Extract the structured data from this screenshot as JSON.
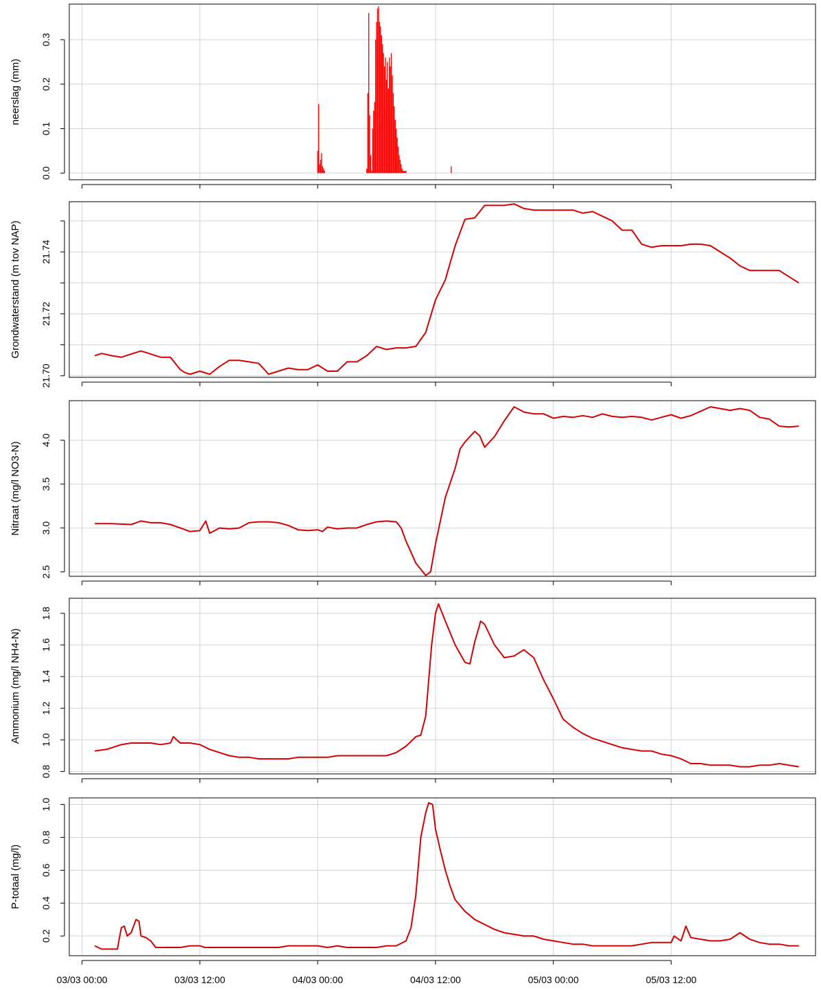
{
  "chart_data": {
    "type": "multi-panel time series",
    "x_tick_labels": [
      "03/03 00:00",
      "03/03 12:00",
      "04/03 00:00",
      "04/03 12:00",
      "05/03 00:00",
      "05/03 12:00"
    ],
    "x_ticks_hours": [
      0,
      12,
      24,
      36,
      48,
      60
    ],
    "x_range_hours": [
      -1.3,
      74.7
    ],
    "grid": true,
    "line_color": "#d40000",
    "bar_color": "#ff0000",
    "panels": [
      {
        "ylabel": "neerslag (mm)",
        "type": "bar",
        "ylim": [
          -0.015,
          0.38
        ],
        "yticks": [
          0.0,
          0.1,
          0.2,
          0.3
        ],
        "ytick_labels": [
          "0.0",
          "0.1",
          "0.2",
          "0.3"
        ],
        "x": [
          24.0,
          24.1,
          24.2,
          24.3,
          24.4,
          24.5,
          24.6,
          24.7,
          29.0,
          29.1,
          29.2,
          29.3,
          29.4,
          29.5,
          29.6,
          29.7,
          29.8,
          29.9,
          30.0,
          30.1,
          30.2,
          30.3,
          30.4,
          30.5,
          30.6,
          30.7,
          30.8,
          30.9,
          31.0,
          31.1,
          31.2,
          31.3,
          31.4,
          31.5,
          31.6,
          31.7,
          31.8,
          31.9,
          32.0,
          32.1,
          32.2,
          32.3,
          32.4,
          32.5,
          32.6,
          32.7,
          32.8,
          32.9,
          33.0,
          37.6
        ],
        "values": [
          0.05,
          0.155,
          0.02,
          0.03,
          0.045,
          0.015,
          0.01,
          0.005,
          0.01,
          0.18,
          0.36,
          0.13,
          0.04,
          0.005,
          0.1,
          0.14,
          0.16,
          0.3,
          0.34,
          0.37,
          0.375,
          0.34,
          0.33,
          0.31,
          0.29,
          0.27,
          0.24,
          0.26,
          0.21,
          0.25,
          0.19,
          0.26,
          0.24,
          0.27,
          0.22,
          0.18,
          0.15,
          0.12,
          0.1,
          0.08,
          0.06,
          0.04,
          0.03,
          0.02,
          0.01,
          0.005,
          0.005,
          0.005,
          0.005,
          0.015
        ]
      },
      {
        "ylabel": "Grondwaterstand (m tov NAP)",
        "type": "line",
        "ylim": [
          21.6995,
          21.7562
        ],
        "yticks": [
          21.7,
          21.71,
          21.72,
          21.73,
          21.74,
          21.75
        ],
        "ytick_labels": [
          "21.70",
          "",
          "21.72",
          "",
          "21.74",
          ""
        ],
        "x": [
          1.3,
          2,
          3,
          4,
          5,
          6,
          7,
          8,
          9,
          10,
          10.5,
          11,
          12,
          13,
          14,
          15,
          16,
          17,
          18,
          19,
          20,
          21,
          22,
          23,
          24,
          25,
          26,
          27,
          28,
          29,
          30,
          31,
          32,
          33,
          34,
          35,
          36,
          37,
          38,
          39,
          40,
          41,
          42,
          43,
          44,
          45,
          46,
          47,
          48,
          49,
          50,
          51,
          52,
          53,
          54,
          55,
          56,
          57,
          58,
          59,
          60,
          61,
          62,
          63,
          64,
          65,
          66,
          67,
          68,
          69,
          70,
          71,
          72,
          73
        ],
        "values": [
          21.7065,
          21.7072,
          21.7065,
          21.706,
          21.707,
          21.708,
          21.707,
          21.706,
          21.706,
          21.702,
          21.701,
          21.7005,
          21.7015,
          21.7005,
          21.703,
          21.705,
          21.705,
          21.7045,
          21.704,
          21.7005,
          21.7015,
          21.7025,
          21.702,
          21.702,
          21.7035,
          21.7015,
          21.7015,
          21.7045,
          21.7045,
          21.7065,
          21.7095,
          21.7085,
          21.709,
          21.709,
          21.7095,
          21.714,
          21.7245,
          21.731,
          21.742,
          21.7505,
          21.751,
          21.755,
          21.755,
          21.755,
          21.7555,
          21.754,
          21.7535,
          21.7535,
          21.7535,
          21.7535,
          21.7535,
          21.7525,
          21.753,
          21.7515,
          21.75,
          21.747,
          21.747,
          21.7425,
          21.7415,
          21.742,
          21.742,
          21.742,
          21.7425,
          21.7425,
          21.742,
          21.74,
          21.738,
          21.7355,
          21.734,
          21.734,
          21.734,
          21.734,
          21.732,
          21.73
        ]
      },
      {
        "ylabel": "Nitraat (mg/l NO3-N)",
        "type": "line",
        "ylim": [
          2.45,
          4.45
        ],
        "yticks": [
          2.5,
          3.0,
          3.5,
          4.0
        ],
        "ytick_labels": [
          "2.5",
          "3.0",
          "3.5",
          "4.0"
        ],
        "x": [
          1.3,
          3,
          5,
          6,
          7,
          8,
          9,
          10,
          11,
          12,
          12.6,
          13,
          14,
          15,
          16,
          17,
          18,
          19,
          20,
          21,
          22,
          23,
          24,
          24.5,
          25,
          26,
          27,
          28,
          29,
          30,
          31,
          32,
          32.5,
          33,
          34,
          35,
          35.5,
          36,
          37,
          38,
          38.5,
          39,
          40,
          40.5,
          41,
          42,
          43,
          44,
          45,
          46,
          47,
          48,
          49,
          50,
          51,
          52,
          53,
          54,
          55,
          56,
          57,
          58,
          59,
          60,
          61,
          62,
          63,
          64,
          65,
          66,
          67,
          68,
          69,
          70,
          71,
          72,
          73
        ],
        "values": [
          3.05,
          3.05,
          3.04,
          3.08,
          3.06,
          3.06,
          3.04,
          3.0,
          2.96,
          2.97,
          3.08,
          2.94,
          3.0,
          2.99,
          3.0,
          3.06,
          3.07,
          3.07,
          3.06,
          3.03,
          2.98,
          2.97,
          2.98,
          2.96,
          3.01,
          2.99,
          3.0,
          3.0,
          3.04,
          3.07,
          3.08,
          3.07,
          3.0,
          2.85,
          2.6,
          2.46,
          2.5,
          2.82,
          3.35,
          3.68,
          3.9,
          3.98,
          4.1,
          4.05,
          3.92,
          4.04,
          4.22,
          4.38,
          4.32,
          4.3,
          4.3,
          4.25,
          4.27,
          4.26,
          4.28,
          4.26,
          4.3,
          4.27,
          4.26,
          4.27,
          4.26,
          4.23,
          4.26,
          4.29,
          4.25,
          4.28,
          4.33,
          4.38,
          4.36,
          4.34,
          4.36,
          4.34,
          4.26,
          4.24,
          4.16,
          4.15,
          4.16
        ]
      },
      {
        "ylabel": "Ammonium (mg/l NH4-N)",
        "type": "line",
        "ylim": [
          0.785,
          1.895
        ],
        "yticks": [
          0.8,
          1.0,
          1.2,
          1.4,
          1.6,
          1.8
        ],
        "ytick_labels": [
          "0.8",
          "1.0",
          "1.2",
          "1.4",
          "1.6",
          "1.8"
        ],
        "x": [
          1.3,
          2.5,
          4,
          5,
          6,
          7,
          8,
          9,
          9.3,
          10,
          11,
          12,
          13,
          14,
          15,
          16,
          17,
          18,
          19,
          20,
          21,
          22,
          23,
          24,
          25,
          26,
          27,
          28,
          29,
          30,
          31,
          32,
          33,
          34,
          34.5,
          35,
          35.6,
          36,
          36.3,
          37,
          38,
          39,
          39.5,
          40,
          40.6,
          41,
          42,
          43,
          44,
          45,
          46,
          47,
          48,
          49,
          50,
          51,
          52,
          53,
          54,
          55,
          56,
          57,
          58,
          59,
          60,
          61,
          62,
          63,
          64,
          65,
          66,
          67,
          68,
          69,
          70,
          71,
          72,
          73
        ],
        "values": [
          0.93,
          0.94,
          0.97,
          0.98,
          0.98,
          0.98,
          0.97,
          0.98,
          1.02,
          0.98,
          0.98,
          0.97,
          0.94,
          0.92,
          0.9,
          0.89,
          0.89,
          0.88,
          0.88,
          0.88,
          0.88,
          0.89,
          0.89,
          0.89,
          0.89,
          0.9,
          0.9,
          0.9,
          0.9,
          0.9,
          0.9,
          0.92,
          0.96,
          1.02,
          1.03,
          1.15,
          1.6,
          1.8,
          1.86,
          1.75,
          1.6,
          1.49,
          1.48,
          1.62,
          1.75,
          1.73,
          1.6,
          1.52,
          1.53,
          1.57,
          1.52,
          1.38,
          1.26,
          1.13,
          1.08,
          1.04,
          1.01,
          0.99,
          0.97,
          0.95,
          0.94,
          0.93,
          0.93,
          0.91,
          0.9,
          0.88,
          0.85,
          0.85,
          0.84,
          0.84,
          0.84,
          0.83,
          0.83,
          0.84,
          0.84,
          0.85,
          0.84,
          0.83
        ]
      },
      {
        "ylabel": "P-totaal (mg/l)",
        "type": "line",
        "ylim": [
          0.08,
          1.04
        ],
        "yticks": [
          0.2,
          0.4,
          0.6,
          0.8,
          1.0
        ],
        "ytick_labels": [
          "0.2",
          "0.4",
          "0.6",
          "0.8",
          "1.0"
        ],
        "x": [
          1.3,
          2,
          3,
          3.6,
          4,
          4.3,
          4.6,
          5,
          5.5,
          5.8,
          6,
          6.5,
          7,
          7.5,
          8,
          9,
          10,
          11,
          12,
          12.5,
          13,
          14,
          15,
          16,
          17,
          18,
          19,
          20,
          21,
          22,
          23,
          24,
          25,
          26,
          27,
          28,
          29,
          30,
          31,
          32,
          33,
          33.5,
          34,
          34.5,
          35,
          35.3,
          35.7,
          36,
          36.5,
          37,
          37.5,
          38,
          39,
          40,
          41,
          42,
          43,
          44,
          45,
          46,
          47,
          48,
          49,
          50,
          51,
          52,
          53,
          54,
          55,
          56,
          57,
          58,
          59,
          60,
          60.3,
          61,
          61.5,
          62,
          63,
          64,
          65,
          66,
          66.5,
          67,
          68,
          69,
          70,
          71,
          72,
          73
        ],
        "values": [
          0.14,
          0.12,
          0.12,
          0.12,
          0.25,
          0.26,
          0.2,
          0.22,
          0.3,
          0.29,
          0.2,
          0.19,
          0.17,
          0.13,
          0.13,
          0.13,
          0.13,
          0.14,
          0.14,
          0.13,
          0.13,
          0.13,
          0.13,
          0.13,
          0.13,
          0.13,
          0.13,
          0.13,
          0.14,
          0.14,
          0.14,
          0.14,
          0.13,
          0.14,
          0.13,
          0.13,
          0.13,
          0.13,
          0.14,
          0.14,
          0.17,
          0.25,
          0.45,
          0.8,
          0.95,
          1.01,
          1.0,
          0.85,
          0.72,
          0.6,
          0.5,
          0.42,
          0.35,
          0.3,
          0.27,
          0.24,
          0.22,
          0.21,
          0.2,
          0.2,
          0.18,
          0.17,
          0.16,
          0.15,
          0.15,
          0.14,
          0.14,
          0.14,
          0.14,
          0.14,
          0.15,
          0.16,
          0.16,
          0.16,
          0.2,
          0.17,
          0.26,
          0.19,
          0.18,
          0.17,
          0.17,
          0.18,
          0.2,
          0.22,
          0.18,
          0.16,
          0.15,
          0.15,
          0.14,
          0.14
        ]
      }
    ]
  }
}
